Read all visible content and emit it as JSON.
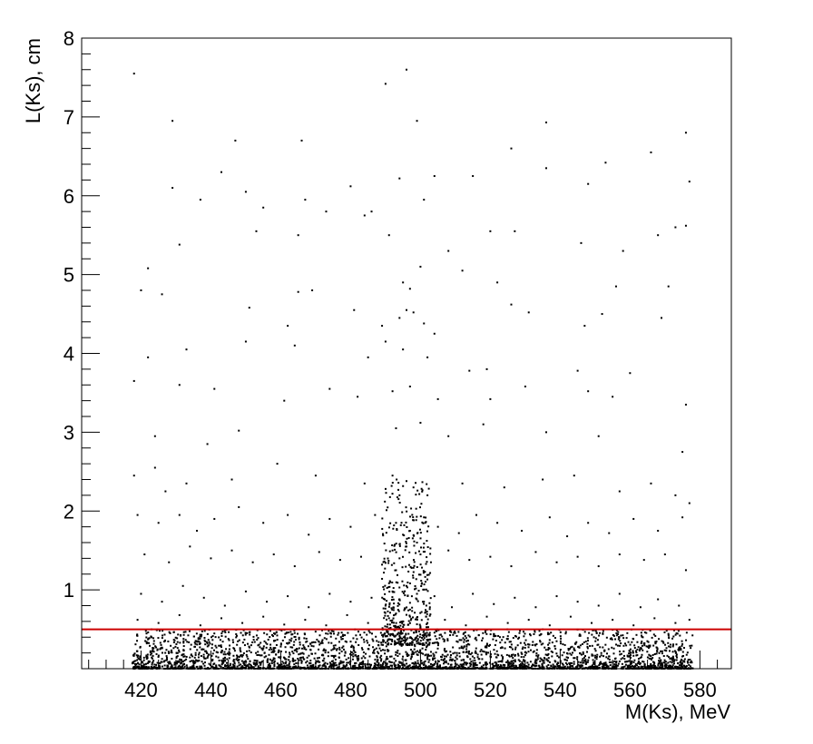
{
  "chart_data": {
    "type": "scatter",
    "xlabel": "M(Ks), MeV",
    "ylabel": "L(Ks), cm",
    "xlim": [
      403,
      589
    ],
    "ylim": [
      0,
      8
    ],
    "xticks": [
      "420",
      "440",
      "460",
      "480",
      "500",
      "520",
      "540",
      "560",
      "580"
    ],
    "yticks": [
      "1",
      "2",
      "3",
      "4",
      "5",
      "6",
      "7",
      "8"
    ],
    "grid": false,
    "marker_color": "#000000",
    "cut_line": {
      "y": 0.5,
      "x_range": [
        403,
        589
      ],
      "color": "#cc0000"
    },
    "series": [
      {
        "points": [
          [
            418,
            7.55
          ],
          [
            429,
            6.95
          ],
          [
            490,
            7.42
          ],
          [
            496,
            7.6
          ],
          [
            499,
            6.95
          ],
          [
            536,
            6.93
          ],
          [
            576,
            6.8
          ],
          [
            447,
            6.7
          ],
          [
            466,
            6.7
          ],
          [
            443,
            6.3
          ],
          [
            429,
            6.1
          ],
          [
            450,
            6.05
          ],
          [
            494,
            6.22
          ],
          [
            504,
            6.25
          ],
          [
            515,
            6.25
          ],
          [
            526,
            6.6
          ],
          [
            536,
            6.35
          ],
          [
            566,
            6.55
          ],
          [
            577,
            6.18
          ],
          [
            553,
            6.42
          ],
          [
            548,
            6.15
          ],
          [
            437,
            5.95
          ],
          [
            455,
            5.85
          ],
          [
            467,
            5.95
          ],
          [
            486,
            5.8
          ],
          [
            431,
            5.38
          ],
          [
            453,
            5.55
          ],
          [
            465,
            5.5
          ],
          [
            473,
            5.8
          ],
          [
            480,
            6.12
          ],
          [
            484,
            5.75
          ],
          [
            501,
            5.95
          ],
          [
            520,
            5.55
          ],
          [
            527,
            5.55
          ],
          [
            546,
            5.4
          ],
          [
            558,
            5.3
          ],
          [
            568,
            5.5
          ],
          [
            573,
            5.6
          ],
          [
            576,
            5.62
          ],
          [
            508,
            5.3
          ],
          [
            491,
            5.5
          ],
          [
            422,
            5.08
          ],
          [
            420,
            4.8
          ],
          [
            426,
            4.75
          ],
          [
            465,
            4.78
          ],
          [
            469,
            4.8
          ],
          [
            495,
            4.9
          ],
          [
            497,
            4.82
          ],
          [
            500,
            5.1
          ],
          [
            512,
            5.05
          ],
          [
            522,
            4.9
          ],
          [
            556,
            4.85
          ],
          [
            569,
            4.45
          ],
          [
            451,
            4.58
          ],
          [
            462,
            4.35
          ],
          [
            481,
            4.55
          ],
          [
            489,
            4.35
          ],
          [
            494,
            4.45
          ],
          [
            496,
            4.55
          ],
          [
            498,
            4.52
          ],
          [
            501,
            4.38
          ],
          [
            504,
            4.25
          ],
          [
            526,
            4.62
          ],
          [
            531,
            4.52
          ],
          [
            547,
            4.35
          ],
          [
            552,
            4.5
          ],
          [
            422,
            3.95
          ],
          [
            433,
            4.05
          ],
          [
            450,
            4.15
          ],
          [
            464,
            4.1
          ],
          [
            485,
            3.95
          ],
          [
            490,
            4.15
          ],
          [
            495,
            4.05
          ],
          [
            502,
            3.95
          ],
          [
            514,
            3.78
          ],
          [
            519,
            3.8
          ],
          [
            545,
            3.78
          ],
          [
            560,
            3.75
          ],
          [
            571,
            4.85
          ],
          [
            418,
            3.65
          ],
          [
            431,
            3.6
          ],
          [
            441,
            3.55
          ],
          [
            474,
            3.55
          ],
          [
            482,
            3.45
          ],
          [
            492,
            3.52
          ],
          [
            497,
            3.58
          ],
          [
            505,
            3.42
          ],
          [
            520,
            3.42
          ],
          [
            530,
            3.58
          ],
          [
            548,
            3.52
          ],
          [
            555,
            3.45
          ],
          [
            576,
            3.35
          ],
          [
            424,
            2.95
          ],
          [
            439,
            2.85
          ],
          [
            448,
            3.02
          ],
          [
            461,
            3.4
          ],
          [
            493,
            3.05
          ],
          [
            500,
            3.12
          ],
          [
            508,
            2.95
          ],
          [
            518,
            3.1
          ],
          [
            536,
            3.0
          ],
          [
            551,
            2.95
          ],
          [
            575,
            2.75
          ],
          [
            418,
            2.45
          ],
          [
            424,
            2.55
          ],
          [
            427,
            2.25
          ],
          [
            433,
            2.35
          ],
          [
            446,
            2.4
          ],
          [
            459,
            2.6
          ],
          [
            470,
            2.45
          ],
          [
            484,
            2.35
          ],
          [
            492,
            2.45
          ],
          [
            494,
            2.2
          ],
          [
            496,
            2.38
          ],
          [
            498,
            2.3
          ],
          [
            502,
            2.2
          ],
          [
            512,
            2.35
          ],
          [
            524,
            2.3
          ],
          [
            535,
            2.4
          ],
          [
            544,
            2.45
          ],
          [
            557,
            2.25
          ],
          [
            566,
            2.35
          ],
          [
            573,
            2.2
          ],
          [
            577,
            2.1
          ],
          [
            419,
            1.95
          ],
          [
            425,
            1.85
          ],
          [
            431,
            1.95
          ],
          [
            436,
            1.75
          ],
          [
            441,
            1.9
          ],
          [
            448,
            2.05
          ],
          [
            455,
            1.85
          ],
          [
            462,
            1.95
          ],
          [
            468,
            1.7
          ],
          [
            474,
            1.9
          ],
          [
            480,
            1.8
          ],
          [
            487,
            1.95
          ],
          [
            493,
            1.85
          ],
          [
            495,
            1.7
          ],
          [
            497,
            1.75
          ],
          [
            499,
            1.6
          ],
          [
            501,
            1.92
          ],
          [
            505,
            1.8
          ],
          [
            511,
            1.72
          ],
          [
            516,
            1.95
          ],
          [
            522,
            1.85
          ],
          [
            529,
            1.75
          ],
          [
            537,
            1.92
          ],
          [
            542,
            1.68
          ],
          [
            548,
            1.85
          ],
          [
            554,
            1.72
          ],
          [
            561,
            1.9
          ],
          [
            568,
            1.75
          ],
          [
            575,
            1.92
          ],
          [
            421,
            1.45
          ],
          [
            428,
            1.35
          ],
          [
            434,
            1.55
          ],
          [
            440,
            1.4
          ],
          [
            446,
            1.5
          ],
          [
            452,
            1.35
          ],
          [
            458,
            1.45
          ],
          [
            464,
            1.3
          ],
          [
            471,
            1.48
          ],
          [
            477,
            1.38
          ],
          [
            483,
            1.42
          ],
          [
            489,
            1.32
          ],
          [
            492,
            1.5
          ],
          [
            494,
            1.4
          ],
          [
            496,
            1.55
          ],
          [
            498,
            1.28
          ],
          [
            500,
            1.45
          ],
          [
            503,
            1.35
          ],
          [
            508,
            1.5
          ],
          [
            514,
            1.38
          ],
          [
            520,
            1.42
          ],
          [
            526,
            1.3
          ],
          [
            533,
            1.48
          ],
          [
            539,
            1.35
          ],
          [
            545,
            1.42
          ],
          [
            551,
            1.3
          ],
          [
            557,
            1.45
          ],
          [
            564,
            1.38
          ],
          [
            570,
            1.45
          ],
          [
            576,
            1.25
          ],
          [
            420,
            0.95
          ],
          [
            426,
            0.85
          ],
          [
            432,
            1.05
          ],
          [
            438,
            0.9
          ],
          [
            444,
            0.8
          ],
          [
            450,
            0.98
          ],
          [
            456,
            0.85
          ],
          [
            462,
            0.92
          ],
          [
            468,
            0.78
          ],
          [
            474,
            0.95
          ],
          [
            480,
            0.85
          ],
          [
            486,
            0.9
          ],
          [
            490,
            0.8
          ],
          [
            492,
            0.98
          ],
          [
            494,
            0.88
          ],
          [
            496,
            1.05
          ],
          [
            497,
            0.75
          ],
          [
            499,
            0.95
          ],
          [
            501,
            0.85
          ],
          [
            504,
            0.92
          ],
          [
            509,
            0.78
          ],
          [
            515,
            0.95
          ],
          [
            521,
            0.82
          ],
          [
            527,
            0.9
          ],
          [
            533,
            0.78
          ],
          [
            539,
            0.92
          ],
          [
            545,
            0.85
          ],
          [
            551,
            0.8
          ],
          [
            557,
            0.95
          ],
          [
            563,
            0.78
          ],
          [
            568,
            0.88
          ],
          [
            574,
            0.8
          ],
          [
            419,
            0.62
          ],
          [
            425,
            0.58
          ],
          [
            431,
            0.68
          ],
          [
            437,
            0.55
          ],
          [
            443,
            0.64
          ],
          [
            449,
            0.58
          ],
          [
            455,
            0.66
          ],
          [
            461,
            0.56
          ],
          [
            467,
            0.62
          ],
          [
            473,
            0.55
          ],
          [
            479,
            0.68
          ],
          [
            485,
            0.58
          ],
          [
            491,
            0.64
          ],
          [
            493,
            0.7
          ],
          [
            495,
            0.6
          ],
          [
            497,
            0.66
          ],
          [
            502,
            0.58
          ],
          [
            507,
            0.62
          ],
          [
            513,
            0.55
          ],
          [
            519,
            0.66
          ],
          [
            525,
            0.58
          ],
          [
            531,
            0.62
          ],
          [
            537,
            0.55
          ],
          [
            543,
            0.66
          ],
          [
            549,
            0.58
          ],
          [
            555,
            0.62
          ],
          [
            561,
            0.55
          ],
          [
            567,
            0.64
          ],
          [
            573,
            0.58
          ],
          [
            577,
            0.62
          ]
        ]
      }
    ],
    "dense_band": {
      "x_range": [
        417.5,
        578
      ],
      "y_range": [
        0.0,
        0.5
      ],
      "description_note": ""
    }
  }
}
